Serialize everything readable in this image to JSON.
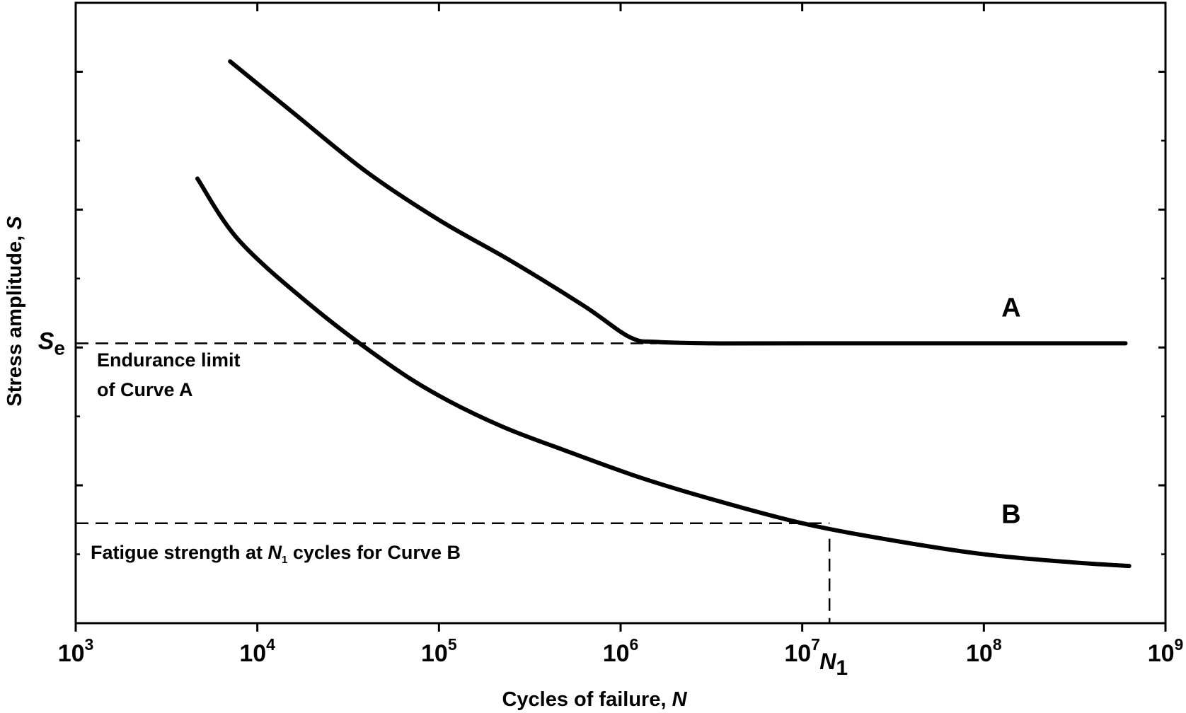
{
  "chart_data": {
    "type": "line",
    "title": "",
    "xlabel": "Cycles of failure, ",
    "xlabel_var": "N",
    "ylabel": "Stress amplitude, ",
    "ylabel_var": "S",
    "xscale": "log",
    "xlim_exp": [
      3,
      9
    ],
    "x_ticks": [
      {
        "base": "10",
        "exp": "3",
        "value": 3
      },
      {
        "base": "10",
        "exp": "4",
        "value": 4
      },
      {
        "base": "10",
        "exp": "5",
        "value": 5
      },
      {
        "base": "10",
        "exp": "6",
        "value": 6
      },
      {
        "base": "10",
        "exp": "7",
        "value": 7
      },
      {
        "base": "10",
        "exp": "8",
        "value": 8
      },
      {
        "base": "10",
        "exp": "9",
        "value": 9
      }
    ],
    "ylim": [
      0,
      9
    ],
    "y_major_ticks": [
      2,
      4,
      6,
      8
    ],
    "y_minor_ticks": [
      1,
      3,
      5,
      7
    ],
    "series": [
      {
        "name": "A",
        "log10_x": [
          3.85,
          4.2,
          4.6,
          5.0,
          5.4,
          5.8,
          6.05,
          6.2,
          6.5,
          7.0,
          8.0,
          8.78
        ],
        "y": [
          8.15,
          7.4,
          6.55,
          5.85,
          5.25,
          4.6,
          4.15,
          4.08,
          4.06,
          4.06,
          4.06,
          4.06
        ]
      },
      {
        "name": "B",
        "log10_x": [
          3.67,
          3.9,
          4.3,
          4.7,
          5.0,
          5.35,
          5.7,
          6.1,
          6.5,
          7.0,
          7.5,
          8.0,
          8.5,
          8.8
        ],
        "y": [
          6.45,
          5.55,
          4.6,
          3.8,
          3.3,
          2.85,
          2.5,
          2.12,
          1.8,
          1.45,
          1.2,
          1.0,
          0.88,
          0.83
        ]
      }
    ],
    "curve_labels": [
      {
        "text": "A",
        "log10_x": 8.15,
        "y": 4.45
      },
      {
        "text": "B",
        "log10_x": 8.15,
        "y": 1.45
      }
    ],
    "reference_lines": {
      "Se": {
        "y": 4.06,
        "label_base": "S",
        "label_sub": "e"
      },
      "N1": {
        "log10_x": 7.15,
        "y": 1.45,
        "label_base": "N",
        "label_sub": "1"
      }
    },
    "annotations": {
      "endurance_line1": "Endurance limit",
      "endurance_line2": "of Curve A",
      "fatigue_before": "Fatigue strength at ",
      "fatigue_var": "N",
      "fatigue_sub": "1",
      "fatigue_after": " cycles for Curve B"
    }
  }
}
